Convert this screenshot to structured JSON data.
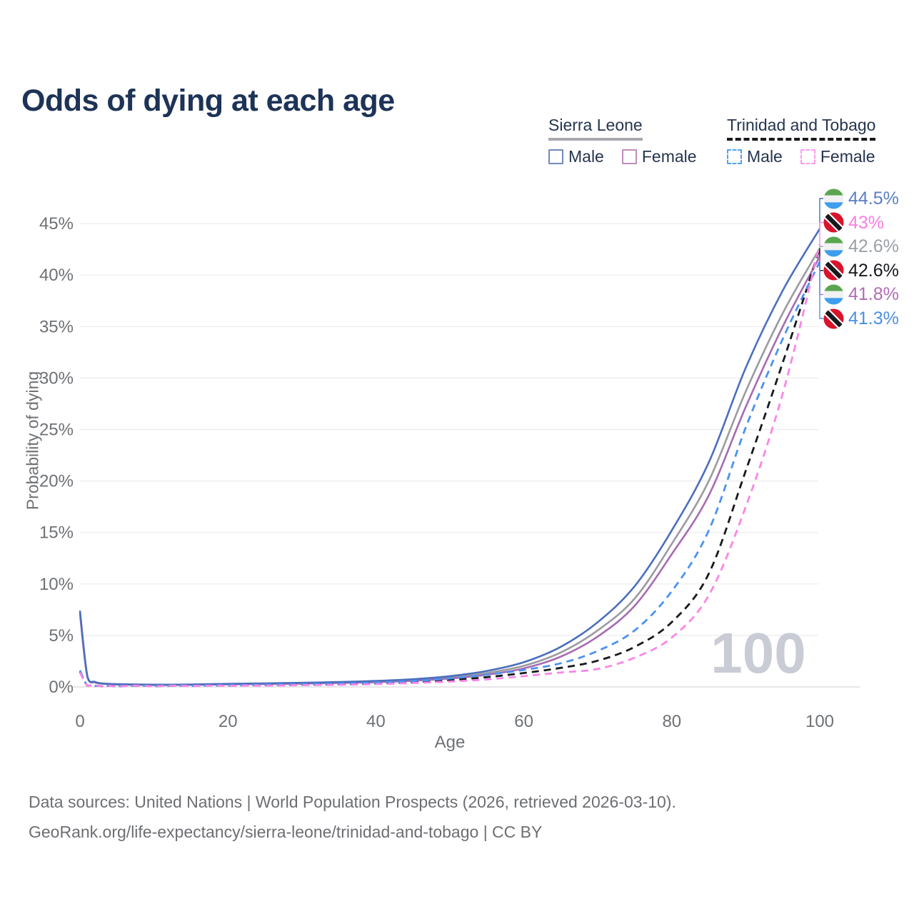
{
  "title": "Odds of dying at each age",
  "watermark": "100",
  "legend": {
    "groups": [
      {
        "name": "Sierra Leone",
        "line_style": "solid",
        "line_color": "#a8a8ad",
        "items": [
          {
            "label": "Male",
            "box_color": "#7289bb",
            "box_style": "solid"
          },
          {
            "label": "Female",
            "box_color": "#c18cbe",
            "box_style": "solid"
          }
        ]
      },
      {
        "name": "Trinidad and Tobago",
        "line_style": "dashed",
        "line_color": "#17191d",
        "items": [
          {
            "label": "Male",
            "box_color": "#54a2f0",
            "box_style": "dashed"
          },
          {
            "label": "Female",
            "box_color": "#fb9ce9",
            "box_style": "dashed"
          }
        ]
      }
    ]
  },
  "axes": {
    "x": {
      "label": "Age",
      "ticks": [
        0,
        20,
        40,
        60,
        80,
        100
      ],
      "range": [
        0,
        100
      ]
    },
    "y": {
      "label": "Probability of dying",
      "ticks": [
        0,
        5,
        10,
        15,
        20,
        25,
        30,
        35,
        40,
        45
      ],
      "tick_suffix": "%",
      "range": [
        0,
        45
      ]
    }
  },
  "footer": {
    "line1": "Data sources: United Nations | World Population Prospects (2026, retrieved 2026-03-10).",
    "line2": "GeoRank.org/life-expectancy/sierra-leone/trinidad-and-tobago | CC BY"
  },
  "chart_data": {
    "type": "line",
    "title": "Odds of dying at each age",
    "xlabel": "Age",
    "ylabel": "Probability of dying",
    "xlim": [
      0,
      100
    ],
    "ylim": [
      0,
      45
    ],
    "grid": true,
    "legend_position": "top-right",
    "series": [
      {
        "name": "Sierra Leone Male",
        "country": "Sierra Leone",
        "flag": "sl",
        "sex": "Male",
        "style": "solid",
        "color": "#4b6fbd",
        "end_label": "44.5%",
        "label_color": "#5b7ec2",
        "points": [
          [
            0,
            7.4
          ],
          [
            1,
            1.05
          ],
          [
            2,
            0.5
          ],
          [
            3,
            0.35
          ],
          [
            5,
            0.27
          ],
          [
            10,
            0.22
          ],
          [
            15,
            0.24
          ],
          [
            20,
            0.3
          ],
          [
            25,
            0.35
          ],
          [
            30,
            0.4
          ],
          [
            35,
            0.48
          ],
          [
            40,
            0.58
          ],
          [
            45,
            0.75
          ],
          [
            50,
            1.05
          ],
          [
            55,
            1.55
          ],
          [
            60,
            2.4
          ],
          [
            65,
            3.9
          ],
          [
            70,
            6.3
          ],
          [
            75,
            9.8
          ],
          [
            80,
            15.2
          ],
          [
            85,
            21.8
          ],
          [
            90,
            31
          ],
          [
            95,
            38.5
          ],
          [
            100,
            44.5
          ]
        ]
      },
      {
        "name": "Trinidad and Tobago Female",
        "country": "Trinidad and Tobago",
        "flag": "tt",
        "sex": "Female",
        "style": "dashed",
        "color": "#fa86e8",
        "end_label": "43%",
        "label_color": "#fa7fe3",
        "points": [
          [
            0,
            1.4
          ],
          [
            1,
            0.11
          ],
          [
            2,
            0.06
          ],
          [
            3,
            0.04
          ],
          [
            5,
            0.04
          ],
          [
            10,
            0.05
          ],
          [
            15,
            0.07
          ],
          [
            20,
            0.1
          ],
          [
            25,
            0.13
          ],
          [
            30,
            0.17
          ],
          [
            35,
            0.21
          ],
          [
            40,
            0.28
          ],
          [
            45,
            0.38
          ],
          [
            50,
            0.52
          ],
          [
            55,
            0.73
          ],
          [
            60,
            1.05
          ],
          [
            65,
            1.4
          ],
          [
            70,
            1.75
          ],
          [
            75,
            2.85
          ],
          [
            80,
            4.8
          ],
          [
            85,
            8.9
          ],
          [
            90,
            17.5
          ],
          [
            95,
            28.5
          ],
          [
            100,
            43
          ]
        ]
      },
      {
        "name": "Sierra Leone",
        "country": "Sierra Leone",
        "flag": "sl",
        "sex": "Both",
        "style": "solid",
        "color": "#9b9ba0",
        "end_label": "42.6%",
        "label_color": "#9aa0a6",
        "points": [
          [
            0,
            7.25
          ],
          [
            1,
            1.0
          ],
          [
            2,
            0.47
          ],
          [
            3,
            0.33
          ],
          [
            5,
            0.25
          ],
          [
            10,
            0.2
          ],
          [
            15,
            0.22
          ],
          [
            20,
            0.27
          ],
          [
            25,
            0.31
          ],
          [
            30,
            0.36
          ],
          [
            35,
            0.43
          ],
          [
            40,
            0.52
          ],
          [
            45,
            0.67
          ],
          [
            50,
            0.92
          ],
          [
            55,
            1.35
          ],
          [
            60,
            2.05
          ],
          [
            65,
            3.35
          ],
          [
            70,
            5.5
          ],
          [
            75,
            8.6
          ],
          [
            80,
            13.9
          ],
          [
            85,
            20
          ],
          [
            90,
            28.7
          ],
          [
            95,
            36.3
          ],
          [
            100,
            42.6
          ]
        ]
      },
      {
        "name": "Trinidad and Tobago",
        "country": "Trinidad and Tobago",
        "flag": "tt",
        "sex": "Both",
        "style": "dashed",
        "color": "#17191d",
        "end_label": "42.6%",
        "label_color": "#17191d",
        "points": [
          [
            0,
            1.5
          ],
          [
            1,
            0.12
          ],
          [
            2,
            0.07
          ],
          [
            3,
            0.05
          ],
          [
            5,
            0.05
          ],
          [
            10,
            0.06
          ],
          [
            15,
            0.09
          ],
          [
            20,
            0.13
          ],
          [
            25,
            0.17
          ],
          [
            30,
            0.21
          ],
          [
            35,
            0.26
          ],
          [
            40,
            0.34
          ],
          [
            45,
            0.46
          ],
          [
            50,
            0.66
          ],
          [
            55,
            0.95
          ],
          [
            60,
            1.35
          ],
          [
            65,
            1.85
          ],
          [
            70,
            2.55
          ],
          [
            75,
            3.9
          ],
          [
            80,
            6.3
          ],
          [
            85,
            11
          ],
          [
            90,
            21
          ],
          [
            95,
            31.5
          ],
          [
            100,
            42.6
          ]
        ]
      },
      {
        "name": "Sierra Leone Female",
        "country": "Sierra Leone",
        "flag": "sl",
        "sex": "Female",
        "style": "solid",
        "color": "#a76bb2",
        "end_label": "41.8%",
        "label_color": "#b06cb5",
        "points": [
          [
            0,
            7.1
          ],
          [
            1,
            0.95
          ],
          [
            2,
            0.44
          ],
          [
            3,
            0.31
          ],
          [
            5,
            0.23
          ],
          [
            10,
            0.18
          ],
          [
            15,
            0.2
          ],
          [
            20,
            0.24
          ],
          [
            25,
            0.28
          ],
          [
            30,
            0.32
          ],
          [
            35,
            0.38
          ],
          [
            40,
            0.46
          ],
          [
            45,
            0.6
          ],
          [
            50,
            0.82
          ],
          [
            55,
            1.18
          ],
          [
            60,
            1.8
          ],
          [
            65,
            2.95
          ],
          [
            70,
            4.9
          ],
          [
            75,
            7.9
          ],
          [
            80,
            12.9
          ],
          [
            85,
            18.6
          ],
          [
            90,
            27.2
          ],
          [
            95,
            35
          ],
          [
            100,
            41.8
          ]
        ]
      },
      {
        "name": "Trinidad and Tobago Male",
        "country": "Trinidad and Tobago",
        "flag": "tt",
        "sex": "Male",
        "style": "dashed",
        "color": "#4b93f0",
        "end_label": "41.3%",
        "label_color": "#4a90e2",
        "points": [
          [
            0,
            1.6
          ],
          [
            1,
            0.13
          ],
          [
            2,
            0.08
          ],
          [
            3,
            0.06
          ],
          [
            5,
            0.06
          ],
          [
            10,
            0.07
          ],
          [
            15,
            0.11
          ],
          [
            20,
            0.16
          ],
          [
            25,
            0.21
          ],
          [
            30,
            0.26
          ],
          [
            35,
            0.32
          ],
          [
            40,
            0.42
          ],
          [
            45,
            0.57
          ],
          [
            50,
            0.82
          ],
          [
            55,
            1.2
          ],
          [
            60,
            1.65
          ],
          [
            65,
            2.3
          ],
          [
            70,
            3.5
          ],
          [
            75,
            5.5
          ],
          [
            80,
            9.3
          ],
          [
            85,
            15.2
          ],
          [
            90,
            25.2
          ],
          [
            95,
            33.8
          ],
          [
            100,
            41.3
          ]
        ]
      }
    ]
  }
}
